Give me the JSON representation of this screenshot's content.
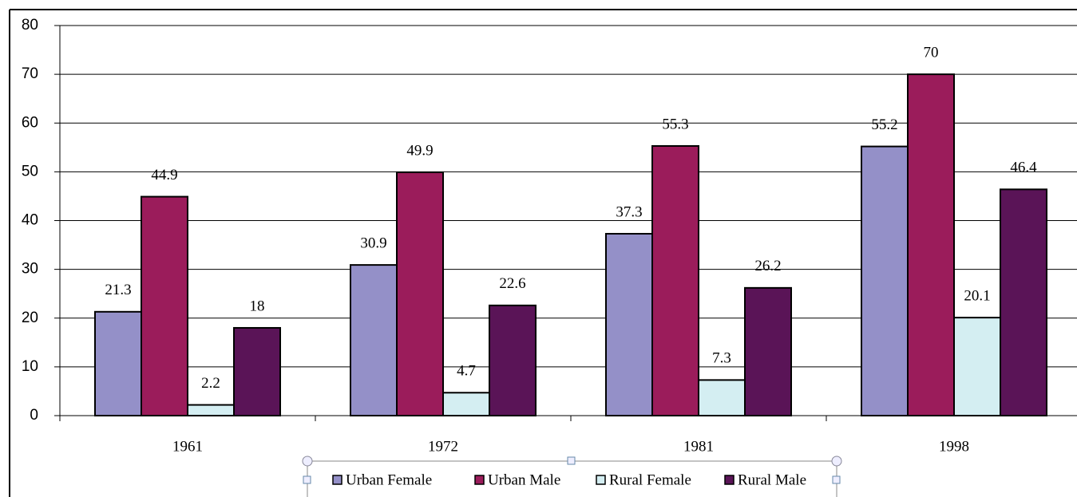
{
  "chart_data": {
    "type": "bar",
    "categories": [
      "1961",
      "1972",
      "1981",
      "1998"
    ],
    "series": [
      {
        "name": "Urban Female",
        "color": "#9490c8",
        "values": [
          21.3,
          30.9,
          37.3,
          55.2
        ]
      },
      {
        "name": "Urban Male",
        "color": "#9b1c5b",
        "values": [
          44.9,
          49.9,
          55.3,
          70
        ]
      },
      {
        "name": "Rural Female",
        "color": "#d4eef2",
        "values": [
          2.2,
          4.7,
          7.3,
          20.1
        ]
      },
      {
        "name": "Rural Male",
        "color": "#5a1457",
        "values": [
          18,
          22.6,
          26.2,
          46.4
        ]
      }
    ],
    "ylim": [
      0,
      80
    ],
    "yticks": [
      0,
      10,
      20,
      30,
      40,
      50,
      60,
      70,
      80
    ],
    "grid": true,
    "legend": "bottom"
  }
}
